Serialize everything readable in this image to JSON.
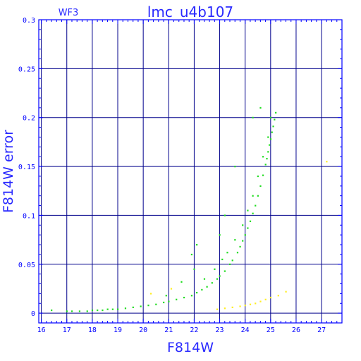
{
  "chart_data": {
    "type": "scatter",
    "title": "lmc_u4b107",
    "subtitle": "WF3",
    "xlabel": "F814W",
    "ylabel": "F814W error",
    "xlim": [
      15.9,
      27.8
    ],
    "ylim": [
      -0.01,
      0.3
    ],
    "x_ticks": [
      16,
      17,
      18,
      19,
      20,
      21,
      22,
      23,
      24,
      25,
      26,
      27
    ],
    "y_ticks": [
      0,
      0.05,
      0.1,
      0.15,
      0.2,
      0.25,
      0.3
    ],
    "y_tick_labels": [
      "0",
      "0.05",
      "0.1",
      "0.15",
      "0.2",
      "0.25",
      "0.3"
    ],
    "grid": true,
    "colors": {
      "axis": "#0000ff",
      "grid": "#00008b",
      "green": "#22dd22",
      "yellow": "#ffee22"
    },
    "series": [
      {
        "color": "#22dd22",
        "x": [
          16.4,
          17.0,
          17.2,
          17.5,
          17.8,
          18.0,
          18.2,
          18.4,
          18.6,
          18.8,
          19.0,
          19.3,
          19.6,
          19.9,
          20.2,
          20.5,
          20.8,
          21.0,
          21.3,
          21.6,
          21.9,
          22.1,
          22.3,
          22.5,
          22.7,
          22.9,
          23.0,
          23.2,
          23.4,
          23.5,
          23.7,
          23.8,
          23.9,
          24.0,
          24.1,
          24.2,
          24.3,
          24.4,
          24.5,
          24.6,
          24.7,
          24.8,
          24.85,
          24.9,
          24.95,
          25.0,
          25.05,
          25.1,
          25.15,
          25.2,
          22.4,
          22.8,
          23.1,
          23.3,
          23.6,
          23.9,
          24.1,
          24.3,
          24.5,
          24.7,
          24.9,
          25.0,
          21.9,
          22.0,
          22.1,
          23.0,
          23.2,
          23.6,
          24.3,
          24.6,
          20.9,
          21.5
        ],
        "y": [
          0.003,
          0.002,
          0.002,
          0.002,
          0.002,
          0.003,
          0.003,
          0.003,
          0.004,
          0.004,
          0.004,
          0.005,
          0.006,
          0.007,
          0.008,
          0.009,
          0.011,
          0.012,
          0.014,
          0.016,
          0.018,
          0.021,
          0.024,
          0.027,
          0.031,
          0.035,
          0.038,
          0.043,
          0.05,
          0.054,
          0.062,
          0.068,
          0.074,
          0.08,
          0.087,
          0.094,
          0.102,
          0.11,
          0.12,
          0.13,
          0.141,
          0.152,
          0.158,
          0.165,
          0.172,
          0.178,
          0.185,
          0.191,
          0.198,
          0.205,
          0.035,
          0.045,
          0.055,
          0.062,
          0.075,
          0.09,
          0.105,
          0.12,
          0.14,
          0.16,
          0.18,
          0.2,
          0.06,
          0.045,
          0.07,
          0.08,
          0.1,
          0.15,
          0.2,
          0.21,
          0.018,
          0.032
        ]
      },
      {
        "color": "#ffee22",
        "x": [
          22.9,
          23.2,
          23.5,
          23.8,
          24.0,
          24.2,
          24.4,
          24.6,
          24.8,
          25.0,
          25.3,
          25.6,
          27.2,
          20.3,
          21.1
        ],
        "y": [
          0.004,
          0.005,
          0.006,
          0.007,
          0.008,
          0.009,
          0.01,
          0.012,
          0.014,
          0.016,
          0.018,
          0.022,
          0.155,
          0.02,
          0.025
        ]
      }
    ]
  }
}
